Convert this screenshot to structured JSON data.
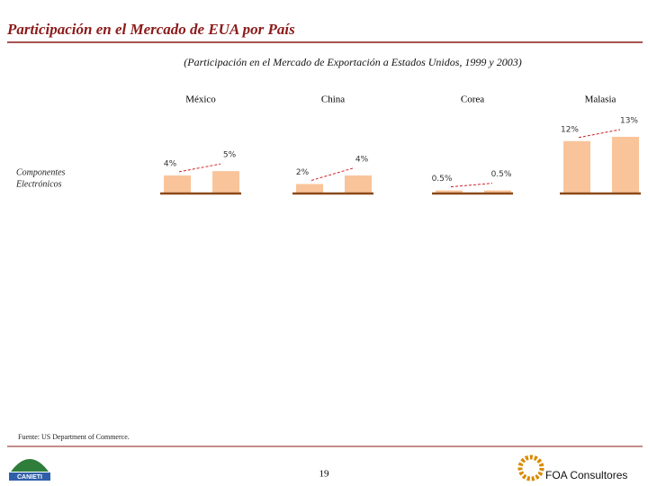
{
  "page": {
    "title": "Participación en el Mercado de EUA por País",
    "subtitle": "(Participación en el Mercado de Exportación a Estados Unidos, 1999 y 2003)",
    "row_label": [
      "Componentes",
      "Electrónicos"
    ],
    "source": "Fuente: US Department of Commerce.",
    "page_number": "19",
    "brand": "FOA Consultores",
    "logo_text": "CANIETI"
  },
  "chart_data": [
    {
      "type": "bar",
      "title": "México",
      "categories": [
        null,
        null
      ],
      "values": [
        4,
        5
      ],
      "value_labels": [
        "4%",
        "5%"
      ],
      "color": "#f9c49a",
      "ylim": [
        0,
        13
      ]
    },
    {
      "type": "bar",
      "title": "China",
      "categories": [
        null,
        null
      ],
      "values": [
        2,
        4
      ],
      "value_labels": [
        "2%",
        "4%"
      ],
      "color": "#f9c49a",
      "ylim": [
        0,
        13
      ]
    },
    {
      "type": "bar",
      "title": "Corea",
      "categories": [
        null,
        null
      ],
      "values": [
        0.5,
        0.5
      ],
      "value_labels": [
        "0.5%",
        "0.5%"
      ],
      "color": "#f9c49a",
      "ylim": [
        0,
        13
      ]
    },
    {
      "type": "bar",
      "title": "Malasia",
      "categories": [
        null,
        null
      ],
      "values": [
        12,
        13
      ],
      "value_labels": [
        "12%",
        "13%"
      ],
      "color": "#f9c49a",
      "ylim": [
        0,
        13
      ]
    }
  ]
}
